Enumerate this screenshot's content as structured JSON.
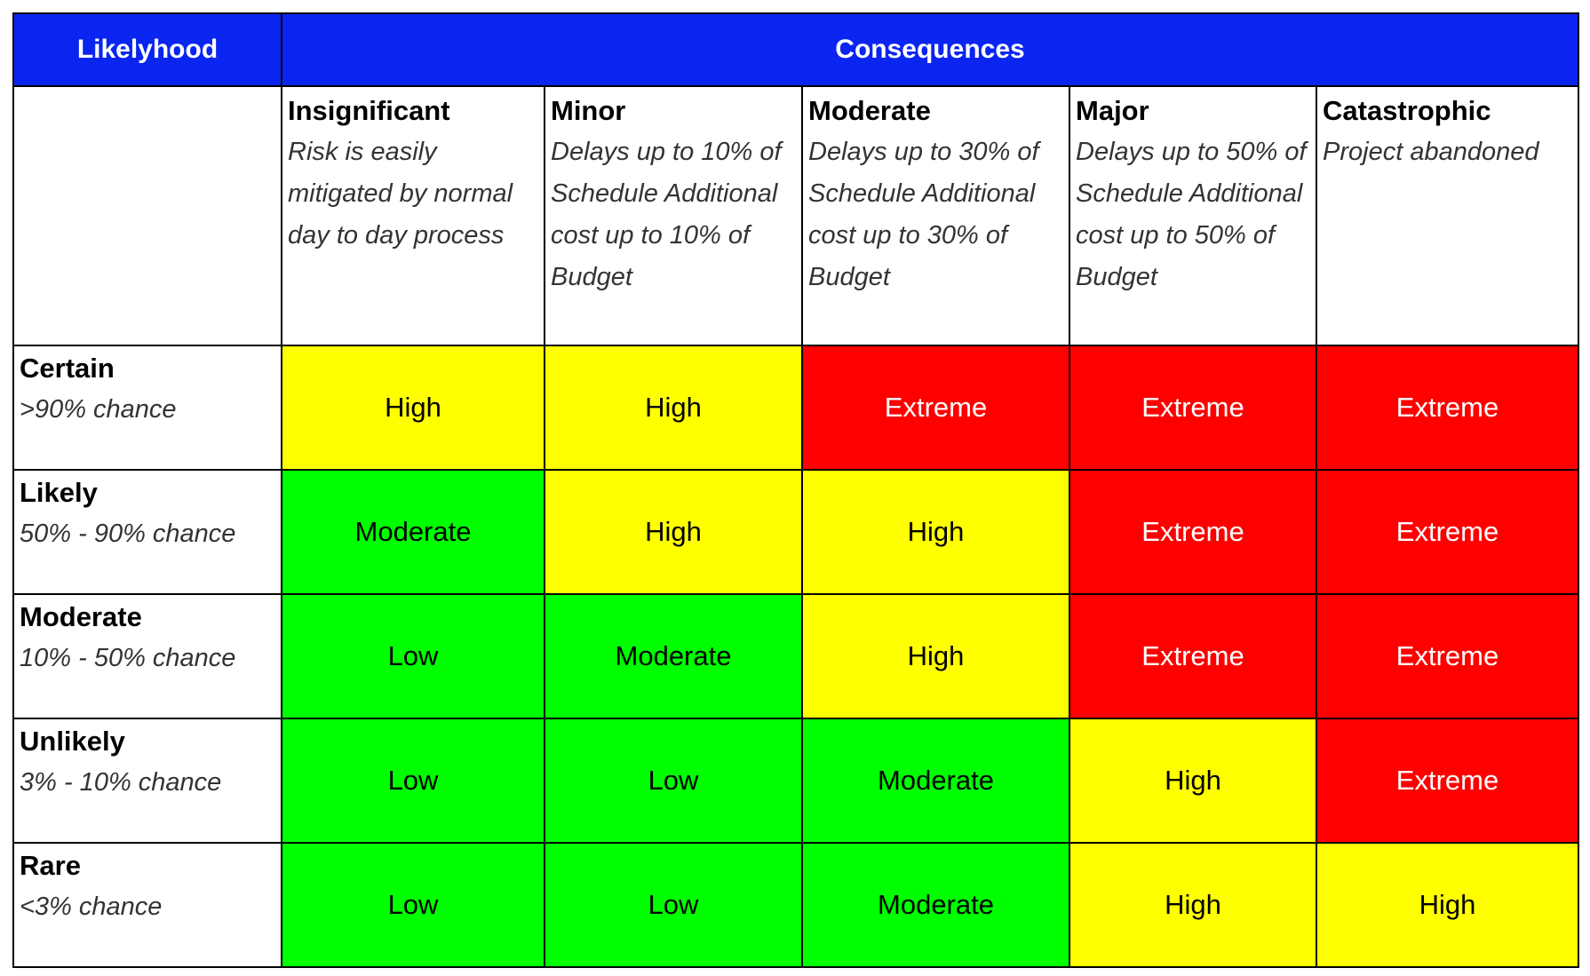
{
  "header": {
    "likelihood": "Likelyhood",
    "consequences": "Consequences"
  },
  "columns": [
    {
      "name": "Insignificant",
      "description": "Risk is easily mitigated by normal day to day process"
    },
    {
      "name": "Minor",
      "description": "Delays up to 10% of Schedule Additional cost up to 10% of Budget"
    },
    {
      "name": "Moderate",
      "description": "Delays up to 30% of Schedule Additional cost up to 30% of Budget"
    },
    {
      "name": "Major",
      "description": "Delays up to 50% of Schedule Additional cost up to 50% of Budget"
    },
    {
      "name": "Catastrophic",
      "description": "Project abandoned"
    }
  ],
  "rows": [
    {
      "name": "Certain",
      "description": ">90% chance",
      "cells": [
        {
          "label": "High",
          "color": "#ffff00",
          "text_color": "#000000"
        },
        {
          "label": "High",
          "color": "#ffff00",
          "text_color": "#000000"
        },
        {
          "label": "Extreme",
          "color": "#ff0000",
          "text_color": "#ffffff"
        },
        {
          "label": "Extreme",
          "color": "#ff0000",
          "text_color": "#ffffff"
        },
        {
          "label": "Extreme",
          "color": "#ff0000",
          "text_color": "#ffffff"
        }
      ]
    },
    {
      "name": "Likely",
      "description": "50% - 90% chance",
      "cells": [
        {
          "label": "Moderate",
          "color": "#00ff00",
          "text_color": "#000000"
        },
        {
          "label": "High",
          "color": "#ffff00",
          "text_color": "#000000"
        },
        {
          "label": "High",
          "color": "#ffff00",
          "text_color": "#000000"
        },
        {
          "label": "Extreme",
          "color": "#ff0000",
          "text_color": "#ffffff"
        },
        {
          "label": "Extreme",
          "color": "#ff0000",
          "text_color": "#ffffff"
        }
      ]
    },
    {
      "name": "Moderate",
      "description": "10% - 50% chance",
      "cells": [
        {
          "label": "Low",
          "color": "#00ff00",
          "text_color": "#000000"
        },
        {
          "label": "Moderate",
          "color": "#00ff00",
          "text_color": "#000000"
        },
        {
          "label": "High",
          "color": "#ffff00",
          "text_color": "#000000"
        },
        {
          "label": "Extreme",
          "color": "#ff0000",
          "text_color": "#ffffff"
        },
        {
          "label": "Extreme",
          "color": "#ff0000",
          "text_color": "#ffffff"
        }
      ]
    },
    {
      "name": "Unlikely",
      "description": "3% - 10% chance",
      "cells": [
        {
          "label": "Low",
          "color": "#00ff00",
          "text_color": "#000000"
        },
        {
          "label": "Low",
          "color": "#00ff00",
          "text_color": "#000000"
        },
        {
          "label": "Moderate",
          "color": "#00ff00",
          "text_color": "#000000"
        },
        {
          "label": "High",
          "color": "#ffff00",
          "text_color": "#000000"
        },
        {
          "label": "Extreme",
          "color": "#ff0000",
          "text_color": "#ffffff"
        }
      ]
    },
    {
      "name": "Rare",
      "description": "<3% chance",
      "cells": [
        {
          "label": "Low",
          "color": "#00ff00",
          "text_color": "#000000"
        },
        {
          "label": "Low",
          "color": "#00ff00",
          "text_color": "#000000"
        },
        {
          "label": "Moderate",
          "color": "#00ff00",
          "text_color": "#000000"
        },
        {
          "label": "High",
          "color": "#ffff00",
          "text_color": "#000000"
        },
        {
          "label": "High",
          "color": "#ffff00",
          "text_color": "#000000"
        }
      ]
    }
  ]
}
